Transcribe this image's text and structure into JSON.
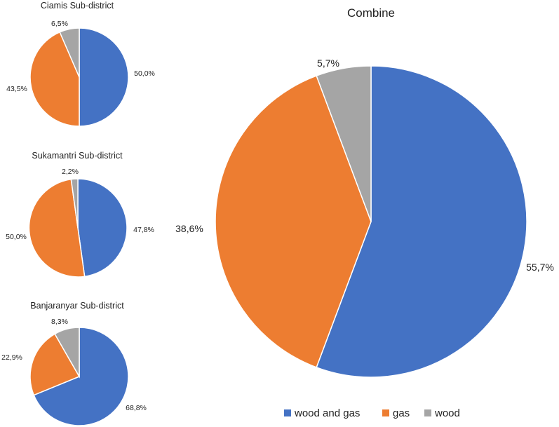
{
  "colors": {
    "wood_and_gas": "#4472C4",
    "gas": "#ED7D31",
    "wood": "#A5A5A5"
  },
  "legend": [
    {
      "key": "wood_and_gas",
      "label": "wood and gas"
    },
    {
      "key": "gas",
      "label": "gas"
    },
    {
      "key": "wood",
      "label": "wood"
    }
  ],
  "chart_data": [
    {
      "type": "pie",
      "title": "Ciamis Sub-district",
      "slices": [
        {
          "key": "wood_and_gas",
          "label": "wood and gas",
          "value": 50.0,
          "display": "50,0%"
        },
        {
          "key": "gas",
          "label": "gas",
          "value": 43.5,
          "display": "43,5%"
        },
        {
          "key": "wood",
          "label": "wood",
          "value": 6.5,
          "display": "6,5%"
        }
      ]
    },
    {
      "type": "pie",
      "title": "Sukamantri Sub-district",
      "slices": [
        {
          "key": "wood_and_gas",
          "label": "wood and gas",
          "value": 47.8,
          "display": "47,8%"
        },
        {
          "key": "gas",
          "label": "gas",
          "value": 50.0,
          "display": "50,0%"
        },
        {
          "key": "wood",
          "label": "wood",
          "value": 2.2,
          "display": "2,2%"
        }
      ]
    },
    {
      "type": "pie",
      "title": "Banjaranyar Sub-district",
      "slices": [
        {
          "key": "wood_and_gas",
          "label": "wood and gas",
          "value": 68.8,
          "display": "68,8%"
        },
        {
          "key": "gas",
          "label": "gas",
          "value": 22.9,
          "display": "22,9%"
        },
        {
          "key": "wood",
          "label": "wood",
          "value": 8.3,
          "display": "8,3%"
        }
      ]
    },
    {
      "type": "pie",
      "title": "Combine",
      "slices": [
        {
          "key": "wood_and_gas",
          "label": "wood and gas",
          "value": 55.7,
          "display": "55,7%"
        },
        {
          "key": "gas",
          "label": "gas",
          "value": 38.6,
          "display": "38,6%"
        },
        {
          "key": "wood",
          "label": "wood",
          "value": 5.7,
          "display": "5,7%"
        }
      ]
    }
  ]
}
